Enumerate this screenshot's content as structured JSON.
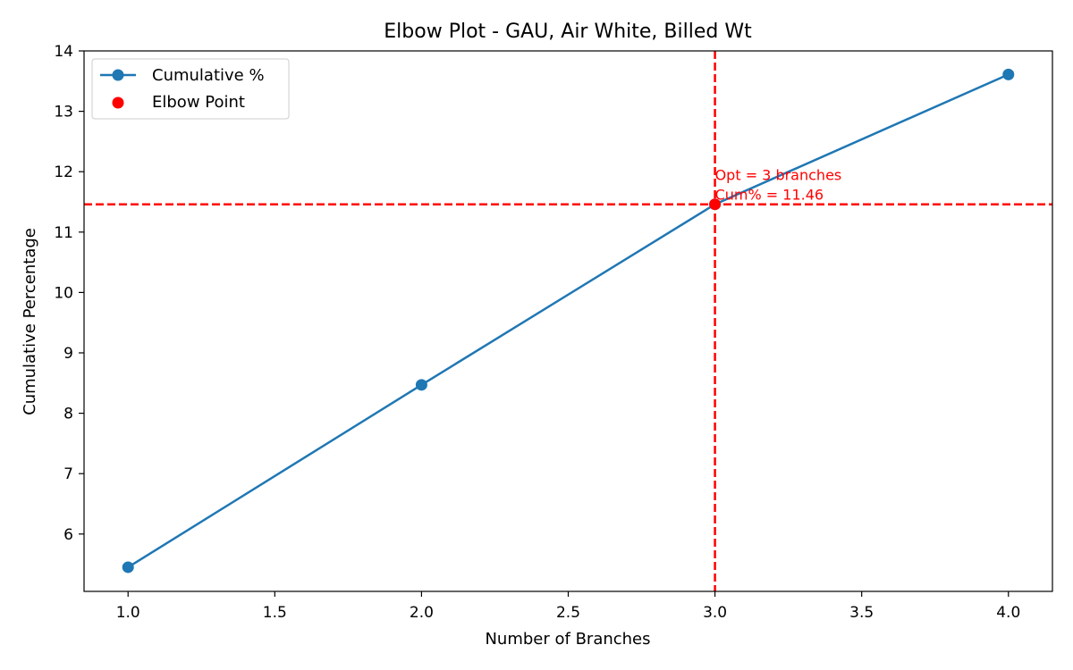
{
  "chart_data": {
    "type": "line",
    "title": "Elbow Plot - GAU, Air White, Billed Wt",
    "xlabel": "Number of Branches",
    "ylabel": "Cumulative Percentage",
    "xlim": [
      0.85,
      4.15
    ],
    "ylim": [
      5.05,
      14.0
    ],
    "x_ticks": [
      1.0,
      1.5,
      2.0,
      2.5,
      3.0,
      3.5,
      4.0
    ],
    "x_tick_labels": [
      "1.0",
      "1.5",
      "2.0",
      "2.5",
      "3.0",
      "3.5",
      "4.0"
    ],
    "y_ticks": [
      6,
      7,
      8,
      9,
      10,
      11,
      12,
      13,
      14
    ],
    "y_tick_labels": [
      "6",
      "7",
      "8",
      "9",
      "10",
      "11",
      "12",
      "13",
      "14"
    ],
    "grid": false,
    "legend_position": "top-left",
    "series": [
      {
        "name": "Cumulative %",
        "color": "#1f77b4",
        "x": [
          1,
          2,
          3,
          4
        ],
        "y": [
          5.45,
          8.47,
          11.46,
          13.61
        ]
      }
    ],
    "elbow": {
      "name": "Elbow Point",
      "color": "#ff0000",
      "x": 3,
      "y": 11.46
    },
    "annotation": {
      "line1": "Opt = 3 branches",
      "line2": "Cum% = 11.46",
      "color": "#ff0000"
    }
  }
}
